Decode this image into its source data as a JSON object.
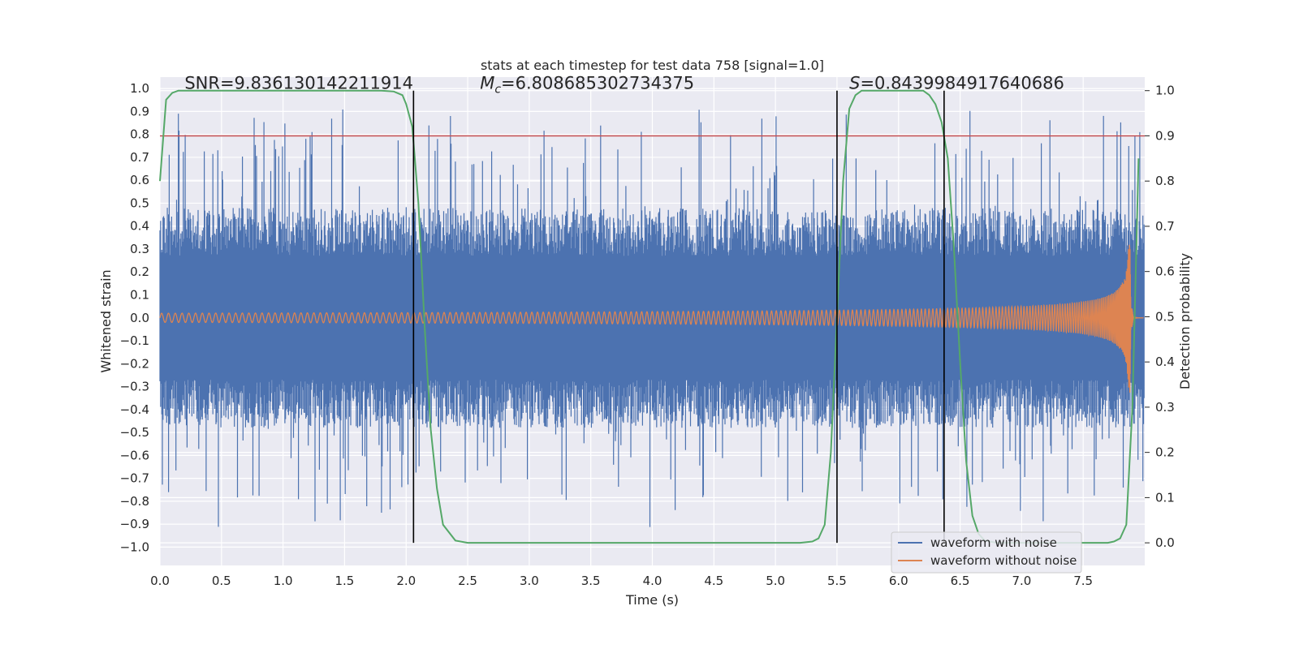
{
  "chart_data": {
    "type": "line",
    "title": "stats at each timestep for test data 758 [signal=1.0]",
    "xlabel": "Time (s)",
    "ylabel": "Whitened strain",
    "ylabel_right": "Detection probability",
    "xlim": [
      0.0,
      8.0
    ],
    "ylim": [
      -1.08,
      1.05
    ],
    "ylim_right": [
      -0.05,
      1.03
    ],
    "xticks": [
      "0.0",
      "0.5",
      "1.0",
      "1.5",
      "2.0",
      "2.5",
      "3.0",
      "3.5",
      "4.0",
      "4.5",
      "5.0",
      "5.5",
      "6.0",
      "6.5",
      "7.0",
      "7.5"
    ],
    "xtick_values": [
      0.0,
      0.5,
      1.0,
      1.5,
      2.0,
      2.5,
      3.0,
      3.5,
      4.0,
      4.5,
      5.0,
      5.5,
      6.0,
      6.5,
      7.0,
      7.5
    ],
    "yticks": [
      "1.0",
      "0.9",
      "0.8",
      "0.7",
      "0.6",
      "0.5",
      "0.4",
      "0.3",
      "0.2",
      "0.1",
      "0.0",
      "-0.1",
      "-0.2",
      "-0.3",
      "-0.4",
      "-0.5",
      "-0.6",
      "-0.7",
      "-0.8",
      "-0.9",
      "-1.0"
    ],
    "ytick_values": [
      1.0,
      0.9,
      0.8,
      0.7,
      0.6,
      0.5,
      0.4,
      0.3,
      0.2,
      0.1,
      0.0,
      -0.1,
      -0.2,
      -0.3,
      -0.4,
      -0.5,
      -0.6,
      -0.7,
      -0.8,
      -0.9,
      -1.0
    ],
    "yticks_right": [
      "1.0",
      "0.9",
      "0.8",
      "0.7",
      "0.6",
      "0.5",
      "0.4",
      "0.3",
      "0.2",
      "0.1",
      "0.0"
    ],
    "ytick_values_right": [
      1.0,
      0.9,
      0.8,
      0.7,
      0.6,
      0.5,
      0.4,
      0.3,
      0.2,
      0.1,
      0.0
    ],
    "annotations": {
      "snr": "SNR=9.836130142211914",
      "mc_symbol": "M",
      "mc_sub": "c",
      "mc_value": "=6.808685302734375",
      "s_symbol": "S",
      "s_value": "=0.8439984917640686"
    },
    "threshold": {
      "value": 0.9,
      "axis": "right",
      "color": "#c44e52"
    },
    "vertical_lines": [
      2.06,
      5.5,
      6.37
    ],
    "series": [
      {
        "name": "waveform with noise",
        "color": "#4c72b0",
        "style": "noise",
        "envelope_inner": 0.27,
        "envelope_outer": 0.48,
        "peak_max": 1.0
      },
      {
        "name": "waveform without noise",
        "color": "#dd8452",
        "style": "chirp",
        "start_amplitude": 0.02,
        "peak_amplitude": 0.33,
        "merger_time": 7.88
      },
      {
        "name": "detection probability",
        "color": "#55a868",
        "axis": "right",
        "x": [
          0.0,
          0.05,
          0.1,
          0.15,
          0.25,
          0.5,
          1.0,
          1.5,
          1.8,
          1.9,
          1.97,
          2.0,
          2.05,
          2.1,
          2.15,
          2.2,
          2.25,
          2.3,
          2.4,
          2.5,
          3.0,
          4.0,
          5.0,
          5.2,
          5.3,
          5.35,
          5.4,
          5.45,
          5.5,
          5.55,
          5.6,
          5.65,
          5.7,
          5.8,
          6.0,
          6.2,
          6.25,
          6.3,
          6.35,
          6.4,
          6.45,
          6.5,
          6.55,
          6.6,
          6.65,
          6.7,
          6.8,
          7.0,
          7.5,
          7.7,
          7.75,
          7.8,
          7.85,
          7.9,
          7.95
        ],
        "y": [
          0.8,
          0.98,
          0.995,
          1.0,
          1.0,
          1.0,
          1.0,
          1.0,
          1.0,
          0.998,
          0.99,
          0.97,
          0.92,
          0.75,
          0.48,
          0.25,
          0.12,
          0.04,
          0.005,
          0.0,
          0.0,
          0.0,
          0.0,
          0.0,
          0.003,
          0.01,
          0.04,
          0.2,
          0.5,
          0.8,
          0.96,
          0.99,
          1.0,
          1.0,
          1.0,
          1.0,
          0.99,
          0.97,
          0.93,
          0.85,
          0.65,
          0.4,
          0.18,
          0.06,
          0.02,
          0.005,
          0.0,
          0.0,
          0.0,
          0.0,
          0.003,
          0.01,
          0.04,
          0.3,
          0.85
        ]
      }
    ],
    "legend": {
      "position": "lower-right",
      "entries": [
        {
          "label": "waveform with noise",
          "color": "#4c72b0"
        },
        {
          "label": "waveform without noise",
          "color": "#dd8452"
        }
      ]
    }
  }
}
